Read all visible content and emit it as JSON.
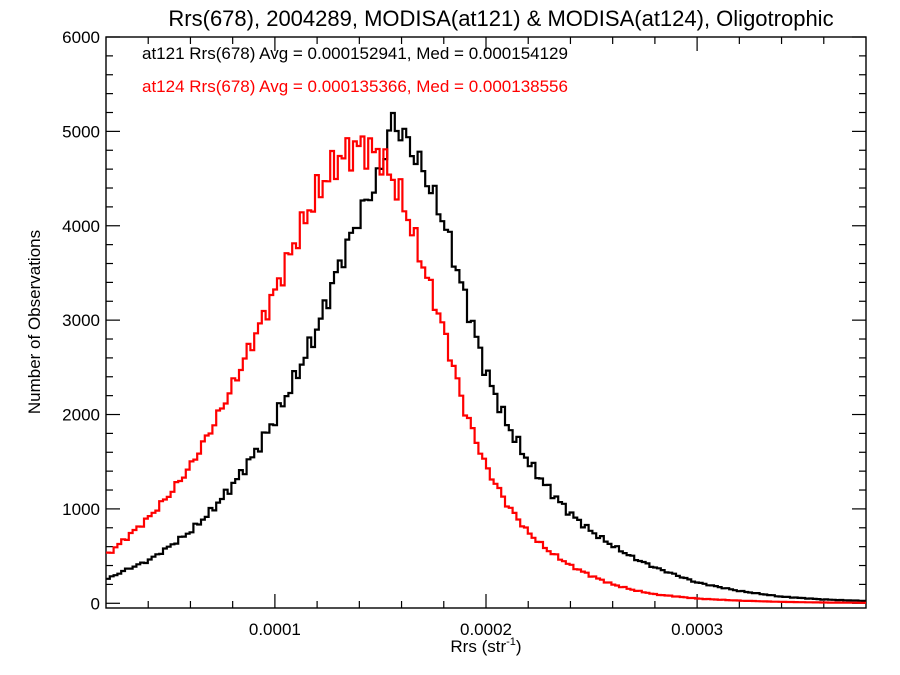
{
  "chart_data": {
    "type": "line",
    "title": "Rrs(678), 2004289, MODISA(at121) & MODISA(at124), Oligotrophic",
    "xlabel": "Rrs (str",
    "xlabel_sup": "-1",
    "xlabel_suffix": ")",
    "ylabel": "Number of Observations",
    "xlim": [
      2e-05,
      0.00038
    ],
    "ylim": [
      -50,
      6000
    ],
    "x_ticks": [
      0.0001,
      0.0002,
      0.0003
    ],
    "x_tick_labels": [
      "0.0001",
      "0.0002",
      "0.0003"
    ],
    "y_ticks": [
      0,
      1000,
      2000,
      3000,
      4000,
      5000,
      6000
    ],
    "y_tick_labels": [
      "0",
      "1000",
      "2000",
      "3000",
      "4000",
      "5000",
      "6000"
    ],
    "grid": false,
    "legend_position": "top-left",
    "series": [
      {
        "name": "at121",
        "color": "#000000",
        "annotation": "at121 Rrs(678) Avg = 0.000152941, Med = 0.000154129",
        "x": [
          2e-05,
          3e-05,
          4e-05,
          5e-05,
          6e-05,
          7e-05,
          8e-05,
          9e-05,
          0.0001,
          0.00011,
          0.00012,
          0.00013,
          0.00014,
          0.00015,
          0.000155,
          0.00016,
          0.00017,
          0.00018,
          0.00019,
          0.0002,
          0.00021,
          0.00022,
          0.00023,
          0.00024,
          0.00025,
          0.00026,
          0.00027,
          0.00028,
          0.0003,
          0.00032,
          0.00034,
          0.00036,
          0.00038
        ],
        "y": [
          250,
          360,
          450,
          600,
          760,
          980,
          1250,
          1570,
          1950,
          2400,
          2900,
          3550,
          4100,
          4550,
          5100,
          5000,
          4600,
          4050,
          3250,
          2450,
          1900,
          1500,
          1200,
          950,
          760,
          610,
          480,
          380,
          220,
          130,
          70,
          40,
          25
        ]
      },
      {
        "name": "at124",
        "color": "#ff0000",
        "annotation": "at124 Rrs(678) Avg = 0.000135366, Med = 0.000138556",
        "x": [
          2e-05,
          3e-05,
          4e-05,
          5e-05,
          6e-05,
          7e-05,
          8e-05,
          9e-05,
          0.0001,
          0.00011,
          0.00012,
          0.00013,
          0.00014,
          0.00015,
          0.00016,
          0.00017,
          0.00018,
          0.00019,
          0.0002,
          0.00021,
          0.00022,
          0.00023,
          0.00024,
          0.00025,
          0.00026,
          0.00027,
          0.00028,
          0.0003,
          0.00032,
          0.00034,
          0.00036,
          0.00038
        ],
        "y": [
          500,
          700,
          900,
          1150,
          1450,
          1850,
          2300,
          2800,
          3300,
          3850,
          4350,
          4700,
          4850,
          4750,
          4300,
          3600,
          2900,
          2050,
          1450,
          1050,
          750,
          550,
          400,
          290,
          200,
          140,
          95,
          50,
          28,
          15,
          8,
          5
        ]
      }
    ]
  }
}
